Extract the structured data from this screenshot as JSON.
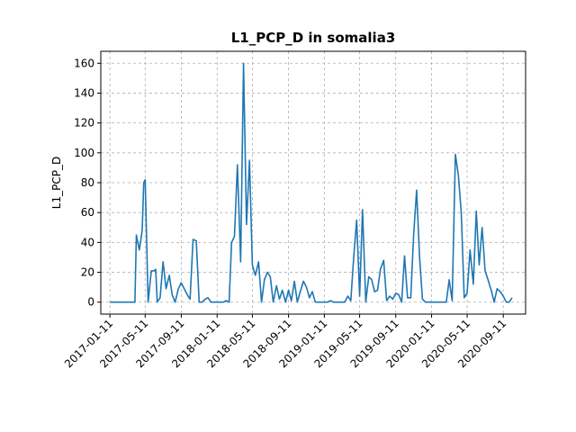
{
  "chart_data": {
    "type": "line",
    "title": "L1_PCP_D in somalia3",
    "xlabel": "",
    "ylabel": "L1_PCP_D",
    "ylim": [
      -8,
      168
    ],
    "xlim": [
      "2016-12-11",
      "2020-11-26"
    ],
    "yticks": [
      0,
      20,
      40,
      60,
      80,
      100,
      120,
      140,
      160
    ],
    "xticks": [
      "2017-01-11",
      "2017-05-11",
      "2017-09-11",
      "2018-01-11",
      "2018-05-11",
      "2018-09-11",
      "2019-01-11",
      "2019-05-11",
      "2019-09-11",
      "2020-01-11",
      "2020-05-11",
      "2020-09-11"
    ],
    "grid": true,
    "color": "#1f77b4",
    "series": [
      {
        "x": [
          "2017-01-11",
          "2017-01-21",
          "2017-02-01",
          "2017-02-11",
          "2017-02-21",
          "2017-03-01",
          "2017-03-11",
          "2017-03-21",
          "2017-04-01",
          "2017-04-06",
          "2017-04-11",
          "2017-04-21",
          "2017-05-01",
          "2017-05-06",
          "2017-05-11",
          "2017-05-21",
          "2017-06-01",
          "2017-06-11",
          "2017-06-16",
          "2017-06-21",
          "2017-07-01",
          "2017-07-11",
          "2017-07-21",
          "2017-08-01",
          "2017-08-11",
          "2017-08-21",
          "2017-09-01",
          "2017-09-11",
          "2017-09-21",
          "2017-10-01",
          "2017-10-11",
          "2017-10-21",
          "2017-11-01",
          "2017-11-11",
          "2017-11-21",
          "2017-12-01",
          "2017-12-11",
          "2017-12-21",
          "2018-01-01",
          "2018-01-11",
          "2018-01-21",
          "2018-02-01",
          "2018-02-11",
          "2018-02-21",
          "2018-03-01",
          "2018-03-11",
          "2018-03-21",
          "2018-04-01",
          "2018-04-11",
          "2018-04-21",
          "2018-05-01",
          "2018-05-11",
          "2018-05-21",
          "2018-06-01",
          "2018-06-11",
          "2018-06-21",
          "2018-07-01",
          "2018-07-11",
          "2018-07-21",
          "2018-08-01",
          "2018-08-11",
          "2018-08-21",
          "2018-09-01",
          "2018-09-11",
          "2018-09-21",
          "2018-10-01",
          "2018-10-11",
          "2018-10-21",
          "2018-11-01",
          "2018-11-11",
          "2018-11-21",
          "2018-12-01",
          "2018-12-11",
          "2018-12-21",
          "2019-01-01",
          "2019-01-11",
          "2019-01-21",
          "2019-02-01",
          "2019-02-11",
          "2019-02-21",
          "2019-03-01",
          "2019-03-11",
          "2019-03-21",
          "2019-04-01",
          "2019-04-11",
          "2019-04-21",
          "2019-05-01",
          "2019-05-11",
          "2019-05-21",
          "2019-06-01",
          "2019-06-11",
          "2019-06-21",
          "2019-07-01",
          "2019-07-11",
          "2019-07-21",
          "2019-08-01",
          "2019-08-11",
          "2019-08-21",
          "2019-09-01",
          "2019-09-11",
          "2019-09-21",
          "2019-10-01",
          "2019-10-11",
          "2019-10-21",
          "2019-11-01",
          "2019-11-11",
          "2019-11-21",
          "2019-12-01",
          "2019-12-11",
          "2019-12-21",
          "2020-01-01",
          "2020-01-11",
          "2020-01-21",
          "2020-02-01",
          "2020-02-11",
          "2020-02-21",
          "2020-03-01",
          "2020-03-11",
          "2020-03-21",
          "2020-04-01",
          "2020-04-11",
          "2020-04-21",
          "2020-05-01",
          "2020-05-11",
          "2020-05-21",
          "2020-06-01",
          "2020-06-11",
          "2020-06-21",
          "2020-07-01",
          "2020-07-11",
          "2020-07-21",
          "2020-08-01",
          "2020-08-11",
          "2020-08-21",
          "2020-09-01",
          "2020-09-11",
          "2020-09-21",
          "2020-10-01",
          "2020-10-11"
        ],
        "y": [
          0,
          0,
          0,
          0,
          0,
          0,
          0,
          0,
          0,
          0,
          45,
          35,
          48,
          80,
          82,
          0,
          21,
          21,
          22,
          0,
          3,
          27,
          9,
          18,
          5,
          0,
          9,
          13,
          9,
          5,
          2,
          42,
          41,
          0,
          0,
          2,
          3,
          0,
          0,
          0,
          0,
          0,
          1,
          0,
          40,
          44,
          92,
          27,
          160,
          52,
          95,
          25,
          18,
          27,
          0,
          15,
          20,
          17,
          0,
          11,
          2,
          8,
          0,
          8,
          1,
          14,
          0,
          7,
          14,
          10,
          3,
          7,
          0,
          0,
          0,
          0,
          0,
          1,
          0,
          0,
          0,
          0,
          0,
          4,
          1,
          30,
          55,
          4,
          62,
          0,
          17,
          15,
          7,
          8,
          22,
          28,
          1,
          4,
          2,
          6,
          5,
          0,
          31,
          3,
          3,
          45,
          75,
          30,
          2,
          0,
          0,
          0,
          0,
          0,
          0,
          0,
          0,
          15,
          1,
          99,
          85,
          60,
          3,
          6,
          35,
          12,
          61,
          25,
          50,
          21,
          15,
          8,
          0,
          9,
          7,
          4,
          0,
          0,
          3
        ]
      }
    ]
  }
}
